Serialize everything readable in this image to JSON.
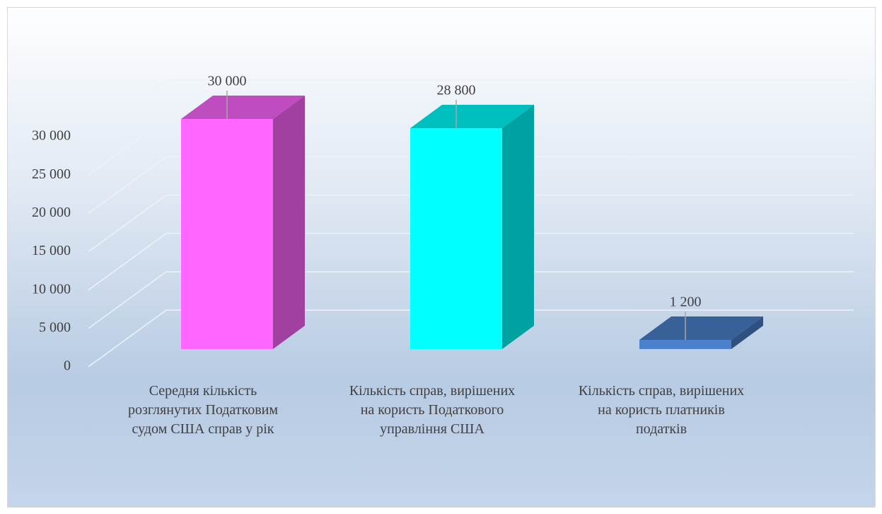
{
  "chart_data": {
    "type": "bar3d",
    "categories": [
      "Середня кількість розглянутих Податковим судом США справ у рік",
      "Кількість справ, вирішених на користь Податкового управління США",
      "Кількість справ, вирішених на користь платників податків"
    ],
    "values": [
      30000,
      28800,
      1200
    ],
    "value_labels": [
      "30 000",
      "28 800",
      "1 200"
    ],
    "colors": [
      "#ff66ff",
      "#00ffff",
      "#4a80cc"
    ],
    "ylim": [
      0,
      30000
    ],
    "yticks": [
      0,
      {
        "value": 5000,
        "label": "5 000"
      },
      {
        "value": 10000,
        "label": "10 000"
      },
      {
        "value": 15000,
        "label": "15 000"
      },
      {
        "value": 20000,
        "label": "20 000"
      },
      {
        "value": 25000,
        "label": "25 000"
      },
      {
        "value": 30000,
        "label": "30 000"
      }
    ],
    "grid": true
  }
}
